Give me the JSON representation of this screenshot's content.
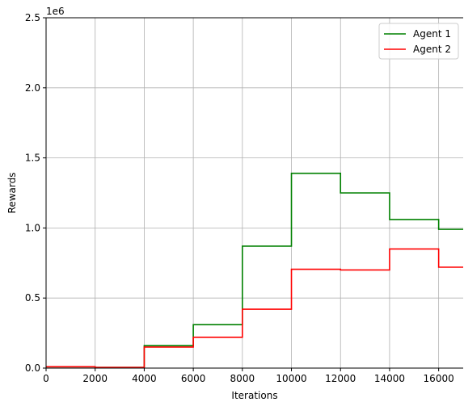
{
  "chart_data": {
    "type": "line",
    "step": "post",
    "xlabel": "Iterations",
    "ylabel": "Rewards",
    "y_offset_text": "1e6",
    "xlim": [
      0,
      17000
    ],
    "ylim": [
      0,
      2500000
    ],
    "x_ticks": [
      0,
      2000,
      4000,
      6000,
      8000,
      10000,
      12000,
      14000,
      16000
    ],
    "x_tick_labels": [
      "0",
      "2000",
      "4000",
      "6000",
      "8000",
      "10000",
      "12000",
      "14000",
      "16000"
    ],
    "y_ticks": [
      0,
      500000,
      1000000,
      1500000,
      2000000,
      2500000
    ],
    "y_tick_labels": [
      "0.0",
      "0.5",
      "1.0",
      "1.5",
      "2.0",
      "2.5"
    ],
    "grid": true,
    "legend_position": "top-right",
    "series": [
      {
        "name": "Agent 1",
        "color": "#008000",
        "x": [
          0,
          2000,
          4000,
          6000,
          8000,
          10000,
          12000,
          14000,
          16000,
          17000
        ],
        "values": [
          10000,
          5000,
          160000,
          310000,
          870000,
          1390000,
          1250000,
          1060000,
          990000,
          990000
        ]
      },
      {
        "name": "Agent 2",
        "color": "#ff0000",
        "x": [
          0,
          2000,
          4000,
          6000,
          8000,
          10000,
          12000,
          14000,
          16000,
          17000
        ],
        "values": [
          10000,
          5000,
          150000,
          220000,
          420000,
          705000,
          700000,
          850000,
          720000,
          720000
        ]
      }
    ]
  }
}
